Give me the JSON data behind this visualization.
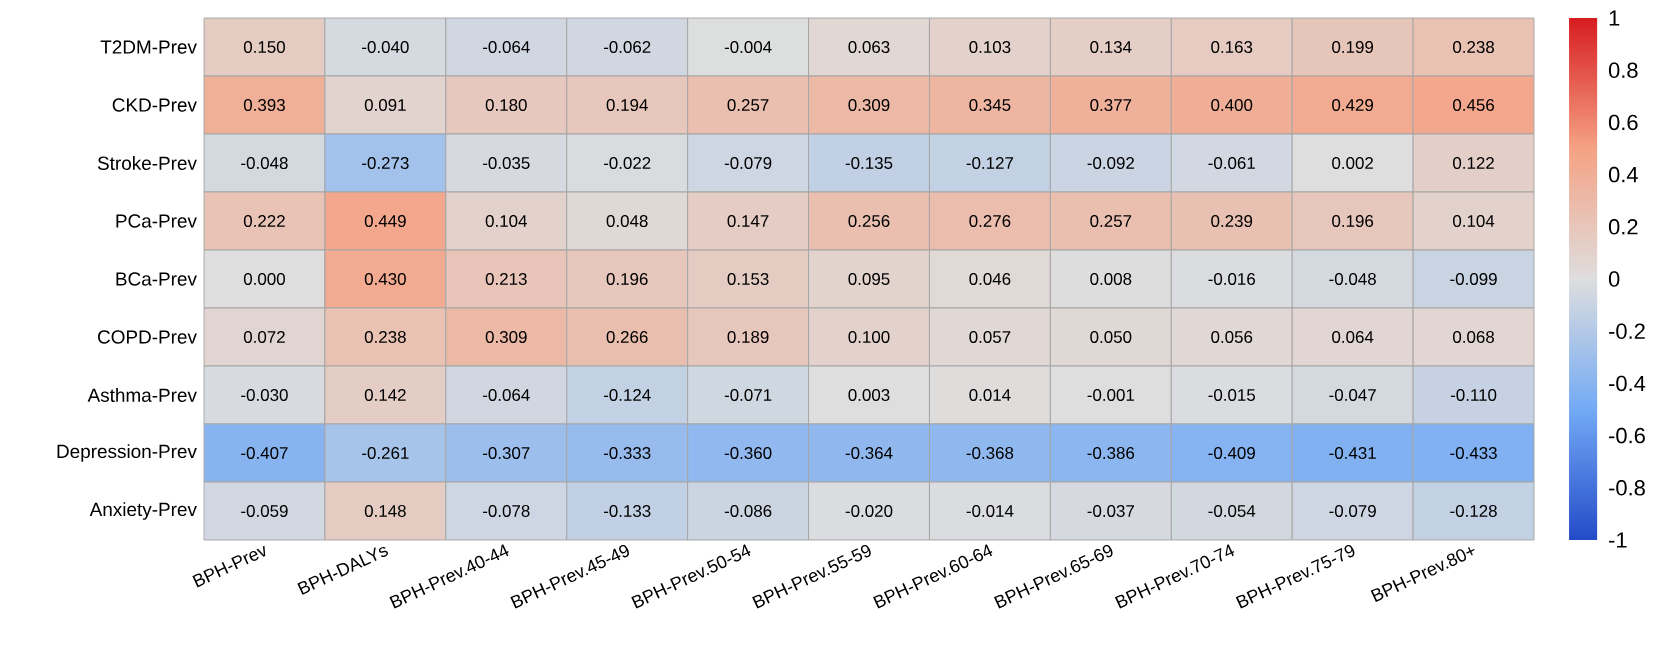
{
  "chart_data": {
    "type": "heatmap",
    "categories": [
      "BPH-Prev",
      "BPH-DALYs",
      "BPH-Prev.40-44",
      "BPH-Prev.45-49",
      "BPH-Prev.50-54",
      "BPH-Prev.55-59",
      "BPH-Prev.60-64",
      "BPH-Prev.65-69",
      "BPH-Prev.70-74",
      "BPH-Prev.75-79",
      "BPH-Prev.80+"
    ],
    "y_categories": [
      "T2DM-Prev",
      "CKD-Prev",
      "Stroke-Prev",
      "PCa-Prev",
      "BCa-Prev",
      "COPD-Prev",
      "Asthma-Prev",
      "Depression-Prev",
      "Anxiety-Prev"
    ],
    "cells": [
      [
        0.15,
        -0.04,
        -0.064,
        -0.062,
        -0.004,
        0.063,
        0.103,
        0.134,
        0.163,
        0.199,
        0.238
      ],
      [
        0.393,
        0.091,
        0.18,
        0.194,
        0.257,
        0.309,
        0.345,
        0.377,
        0.4,
        0.429,
        0.456
      ],
      [
        -0.048,
        -0.273,
        -0.035,
        -0.022,
        -0.079,
        -0.135,
        -0.127,
        -0.092,
        -0.061,
        0.002,
        0.122
      ],
      [
        0.222,
        0.449,
        0.104,
        0.048,
        0.147,
        0.256,
        0.276,
        0.257,
        0.239,
        0.196,
        0.104
      ],
      [
        0.0,
        0.43,
        0.213,
        0.196,
        0.153,
        0.095,
        0.046,
        0.008,
        -0.016,
        -0.048,
        -0.099
      ],
      [
        0.072,
        0.238,
        0.309,
        0.266,
        0.189,
        0.1,
        0.057,
        0.05,
        0.056,
        0.064,
        0.068
      ],
      [
        -0.03,
        0.142,
        -0.064,
        -0.124,
        -0.071,
        0.003,
        0.014,
        -0.001,
        -0.015,
        -0.047,
        -0.11
      ],
      [
        -0.407,
        -0.261,
        -0.307,
        -0.333,
        -0.36,
        -0.364,
        -0.368,
        -0.386,
        -0.409,
        -0.431,
        -0.433
      ],
      [
        -0.059,
        0.148,
        -0.078,
        -0.133,
        -0.086,
        -0.02,
        -0.014,
        -0.037,
        -0.054,
        -0.079,
        -0.128
      ]
    ],
    "cell_labels": [
      [
        "0.150",
        "-0.040",
        "-0.064",
        "-0.062",
        "-0.004",
        "0.063",
        "0.103",
        "0.134",
        "0.163",
        "0.199",
        "0.238"
      ],
      [
        "0.393",
        "0.091",
        "0.180",
        "0.194",
        "0.257",
        "0.309",
        "0.345",
        "0.377",
        "0.400",
        "0.429",
        "0.456"
      ],
      [
        "-0.048",
        "-0.273",
        "-0.035",
        "-0.022",
        "-0.079",
        "-0.135",
        "-0.127",
        "-0.092",
        "-0.061",
        "0.002",
        "0.122"
      ],
      [
        "0.222",
        "0.449",
        "0.104",
        "0.048",
        "0.147",
        "0.256",
        "0.276",
        "0.257",
        "0.239",
        "0.196",
        "0.104"
      ],
      [
        "0.000",
        "0.430",
        "0.213",
        "0.196",
        "0.153",
        "0.095",
        "0.046",
        "0.008",
        "-0.016",
        "-0.048",
        "-0.099"
      ],
      [
        "0.072",
        "0.238",
        "0.309",
        "0.266",
        "0.189",
        "0.100",
        "0.057",
        "0.050",
        "0.056",
        "0.064",
        "0.068"
      ],
      [
        "-0.030",
        "0.142",
        "-0.064",
        "-0.124",
        "-0.071",
        "0.003",
        "0.014",
        "-0.001",
        "-0.015",
        "-0.047",
        "-0.110"
      ],
      [
        "-0.407",
        "-0.261",
        "-0.307",
        "-0.333",
        "-0.360",
        "-0.364",
        "-0.368",
        "-0.386",
        "-0.409",
        "-0.431",
        "-0.433"
      ],
      [
        "-0.059",
        "0.148",
        "-0.078",
        "-0.133",
        "-0.086",
        "-0.020",
        "-0.014",
        "-0.037",
        "-0.054",
        "-0.079",
        "-0.128"
      ]
    ],
    "clim": [
      -1,
      1
    ],
    "cticks": [
      1,
      0.8,
      0.6,
      0.4,
      0.2,
      0,
      -0.2,
      -0.4,
      -0.6,
      -0.8,
      -1
    ]
  }
}
